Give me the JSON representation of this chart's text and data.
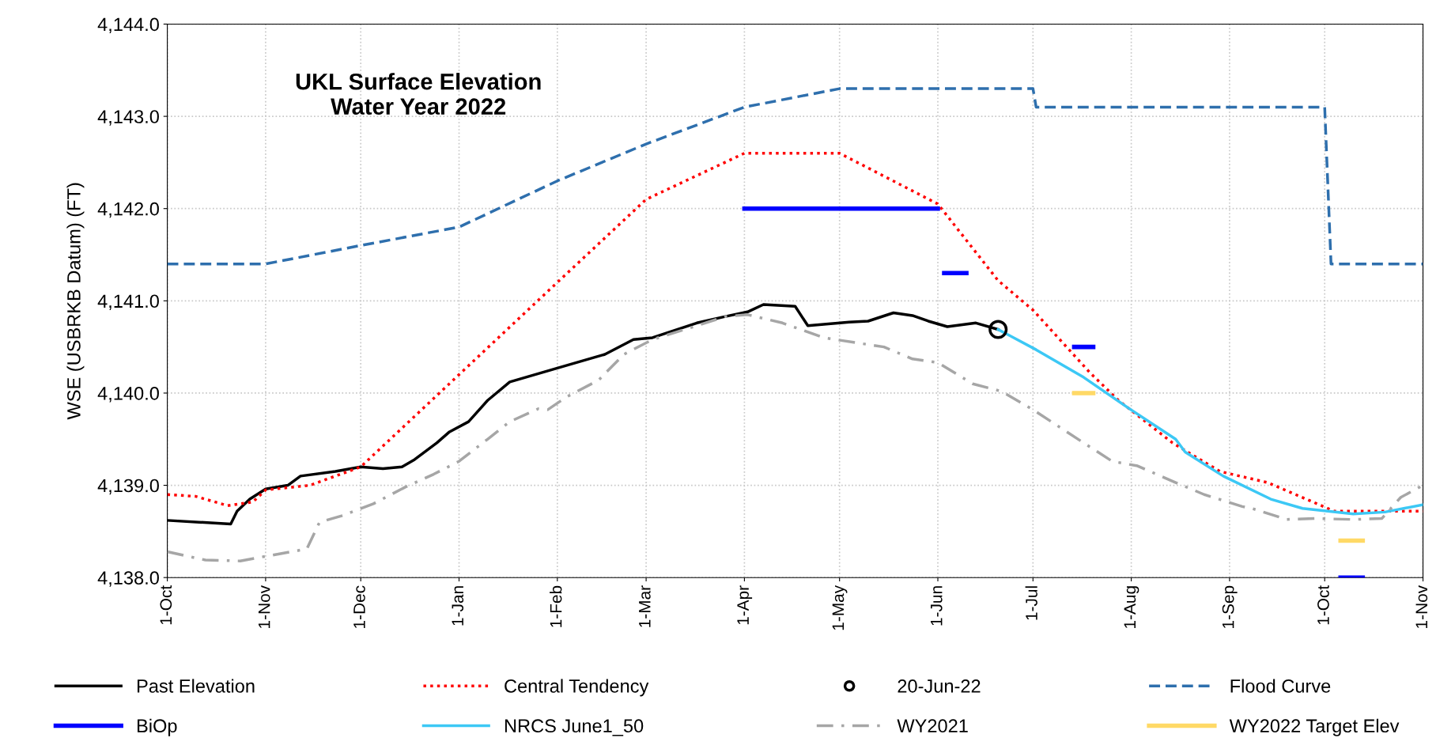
{
  "chart_data": {
    "type": "line",
    "title": "UKL Surface Elevation\nWater Year 2022",
    "ylabel": "WSE (USBRKB Datum) (FT)",
    "xlim": [
      "2021-10-01",
      "2022-11-01"
    ],
    "xticks": [
      {
        "value": "2021-10-01",
        "label": "1-Oct"
      },
      {
        "value": "2021-11-01",
        "label": "1-Nov"
      },
      {
        "value": "2021-12-01",
        "label": "1-Dec"
      },
      {
        "value": "2022-01-01",
        "label": "1-Jan"
      },
      {
        "value": "2022-02-01",
        "label": "1-Feb"
      },
      {
        "value": "2022-03-01",
        "label": "1-Mar"
      },
      {
        "value": "2022-04-01",
        "label": "1-Apr"
      },
      {
        "value": "2022-05-01",
        "label": "1-May"
      },
      {
        "value": "2022-06-01",
        "label": "1-Jun"
      },
      {
        "value": "2022-07-01",
        "label": "1-Jul"
      },
      {
        "value": "2022-08-01",
        "label": "1-Aug"
      },
      {
        "value": "2022-09-01",
        "label": "1-Sep"
      },
      {
        "value": "2022-10-01",
        "label": "1-Oct"
      },
      {
        "value": "2022-11-01",
        "label": "1-Nov"
      }
    ],
    "ylim": [
      4138,
      4144
    ],
    "yticks": [
      {
        "value": 4138,
        "label": "4,138.0"
      },
      {
        "value": 4139,
        "label": "4,139.0"
      },
      {
        "value": 4140,
        "label": "4,140.0"
      },
      {
        "value": 4141,
        "label": "4,141.0"
      },
      {
        "value": 4142,
        "label": "4,142.0"
      },
      {
        "value": 4143,
        "label": "4,143.0"
      },
      {
        "value": 4144,
        "label": "4,144.0"
      }
    ],
    "grid": true,
    "legend": "bottom",
    "series": [
      {
        "name": "Past Elevation",
        "color": "#000000",
        "line_style": "solid",
        "x": [
          "2021-10-01",
          "2021-10-21",
          "2021-10-23",
          "2021-10-27",
          "2021-11-01",
          "2021-11-08",
          "2021-11-12",
          "2021-11-23",
          "2021-12-01",
          "2021-12-08",
          "2021-12-14",
          "2021-12-18",
          "2021-12-25",
          "2021-12-29",
          "2022-01-04",
          "2022-01-10",
          "2022-01-17",
          "2022-02-01",
          "2022-02-16",
          "2022-02-25",
          "2022-03-03",
          "2022-03-17",
          "2022-03-26",
          "2022-04-02",
          "2022-04-07",
          "2022-04-17",
          "2022-04-21",
          "2022-05-04",
          "2022-05-10",
          "2022-05-18",
          "2022-05-24",
          "2022-05-29",
          "2022-06-04",
          "2022-06-13",
          "2022-06-20"
        ],
        "values": [
          4138.62,
          4138.58,
          4138.72,
          4138.85,
          4138.96,
          4139.0,
          4139.1,
          4139.15,
          4139.2,
          4139.18,
          4139.2,
          4139.28,
          4139.46,
          4139.58,
          4139.69,
          4139.92,
          4140.12,
          4140.27,
          4140.42,
          4140.58,
          4140.6,
          4140.76,
          4140.83,
          4140.88,
          4140.96,
          4140.94,
          4140.73,
          4140.77,
          4140.78,
          4140.87,
          4140.84,
          4140.78,
          4140.72,
          4140.76,
          4140.69
        ]
      },
      {
        "name": "Central Tendency",
        "color": "#ff0000",
        "line_style": "dotted",
        "x": [
          "2021-10-01",
          "2021-10-10",
          "2021-10-20",
          "2021-10-28",
          "2021-11-01",
          "2021-11-15",
          "2021-12-01",
          "2022-01-01",
          "2022-02-01",
          "2022-03-01",
          "2022-04-01",
          "2022-05-01",
          "2022-06-01",
          "2022-06-20",
          "2022-07-01",
          "2022-07-19",
          "2022-07-28",
          "2022-08-14",
          "2022-08-29",
          "2022-09-13",
          "2022-10-04",
          "2022-11-01"
        ],
        "values": [
          4138.9,
          4138.88,
          4138.78,
          4138.82,
          4138.95,
          4139.0,
          4139.2,
          4140.2,
          4141.2,
          4142.1,
          4142.6,
          4142.6,
          4142.05,
          4141.22,
          4140.9,
          4140.22,
          4139.92,
          4139.46,
          4139.15,
          4139.03,
          4138.72,
          4138.72
        ]
      },
      {
        "name": "20-Jun-22",
        "type": "scatter",
        "marker": "circle",
        "color": "#000000",
        "x": [
          "2022-06-20"
        ],
        "values": [
          4140.69
        ]
      },
      {
        "name": "Flood Curve",
        "color": "#2e6fad",
        "line_style": "dashed",
        "x": [
          "2021-10-01",
          "2021-11-01",
          "2021-12-01",
          "2022-01-01",
          "2022-02-01",
          "2022-03-01",
          "2022-04-01",
          "2022-05-01",
          "2022-07-01",
          "2022-07-02",
          "2022-10-01",
          "2022-10-03",
          "2022-11-01"
        ],
        "values": [
          4141.4,
          4141.4,
          4141.6,
          4141.8,
          4142.3,
          4142.7,
          4143.1,
          4143.3,
          4143.3,
          4143.1,
          4143.1,
          4141.4,
          4141.4
        ]
      },
      {
        "name": "BiOp",
        "color": "#0000ff",
        "line_style": "solid",
        "x": [
          "2022-04-01",
          "2022-06-01",
          "2022-06-02",
          "2022-06-03",
          "2022-06-10",
          "2022-06-11",
          "2022-07-14",
          "2022-07-20",
          "2022-07-21",
          "2022-10-06",
          "2022-10-13"
        ],
        "values": [
          4142.0,
          4142.0,
          null,
          4141.3,
          4141.3,
          null,
          4140.5,
          4140.5,
          null,
          4138.0,
          4138.0
        ]
      },
      {
        "name": "NRCS June1_50",
        "color": "#3cc8f5",
        "line_style": "solid",
        "x": [
          "2022-06-20",
          "2022-07-02",
          "2022-07-17",
          "2022-07-31",
          "2022-08-15",
          "2022-08-18",
          "2022-08-30",
          "2022-09-14",
          "2022-09-24",
          "2022-10-10",
          "2022-10-20",
          "2022-11-01"
        ],
        "values": [
          4140.69,
          4140.47,
          4140.17,
          4139.84,
          4139.5,
          4139.36,
          4139.1,
          4138.85,
          4138.75,
          4138.69,
          4138.71,
          4138.79
        ]
      },
      {
        "name": "WY2021",
        "color": "#a6a6a6",
        "line_style": "dashdot",
        "x": [
          "2021-10-01",
          "2021-10-13",
          "2021-10-24",
          "2021-11-01",
          "2021-11-14",
          "2021-11-18",
          "2021-11-25",
          "2021-12-05",
          "2021-12-15",
          "2021-12-24",
          "2022-01-01",
          "2022-01-10",
          "2022-01-17",
          "2022-01-26",
          "2022-01-29",
          "2022-02-04",
          "2022-02-14",
          "2022-02-22",
          "2022-03-03",
          "2022-03-17",
          "2022-03-26",
          "2022-04-02",
          "2022-04-13",
          "2022-04-26",
          "2022-05-15",
          "2022-05-24",
          "2022-06-01",
          "2022-06-12",
          "2022-06-21",
          "2022-07-01",
          "2022-07-17",
          "2022-07-26",
          "2022-08-03",
          "2022-08-15",
          "2022-08-24",
          "2022-09-05",
          "2022-09-08",
          "2022-09-19",
          "2022-09-28",
          "2022-10-10",
          "2022-10-19",
          "2022-10-25",
          "2022-11-01"
        ],
        "values": [
          4138.28,
          4138.19,
          4138.18,
          4138.23,
          4138.31,
          4138.6,
          4138.67,
          4138.8,
          4138.98,
          4139.12,
          4139.26,
          4139.5,
          4139.69,
          4139.83,
          4139.82,
          4139.96,
          4140.14,
          4140.42,
          4140.58,
          4140.73,
          4140.83,
          4140.85,
          4140.76,
          4140.6,
          4140.5,
          4140.37,
          4140.33,
          4140.1,
          4140.02,
          4139.82,
          4139.46,
          4139.26,
          4139.21,
          4139.03,
          4138.9,
          4138.77,
          4138.75,
          4138.63,
          4138.64,
          4138.63,
          4138.64,
          4138.87,
          4139.0
        ]
      },
      {
        "name": "WY2022 Target Elev",
        "color": "#ffd966",
        "line_style": "solid",
        "x": [
          "2022-07-14",
          "2022-07-20",
          "2022-07-21",
          "2022-10-06",
          "2022-10-13"
        ],
        "values": [
          4140.0,
          4140.0,
          null,
          4138.4,
          4138.4
        ]
      }
    ]
  }
}
